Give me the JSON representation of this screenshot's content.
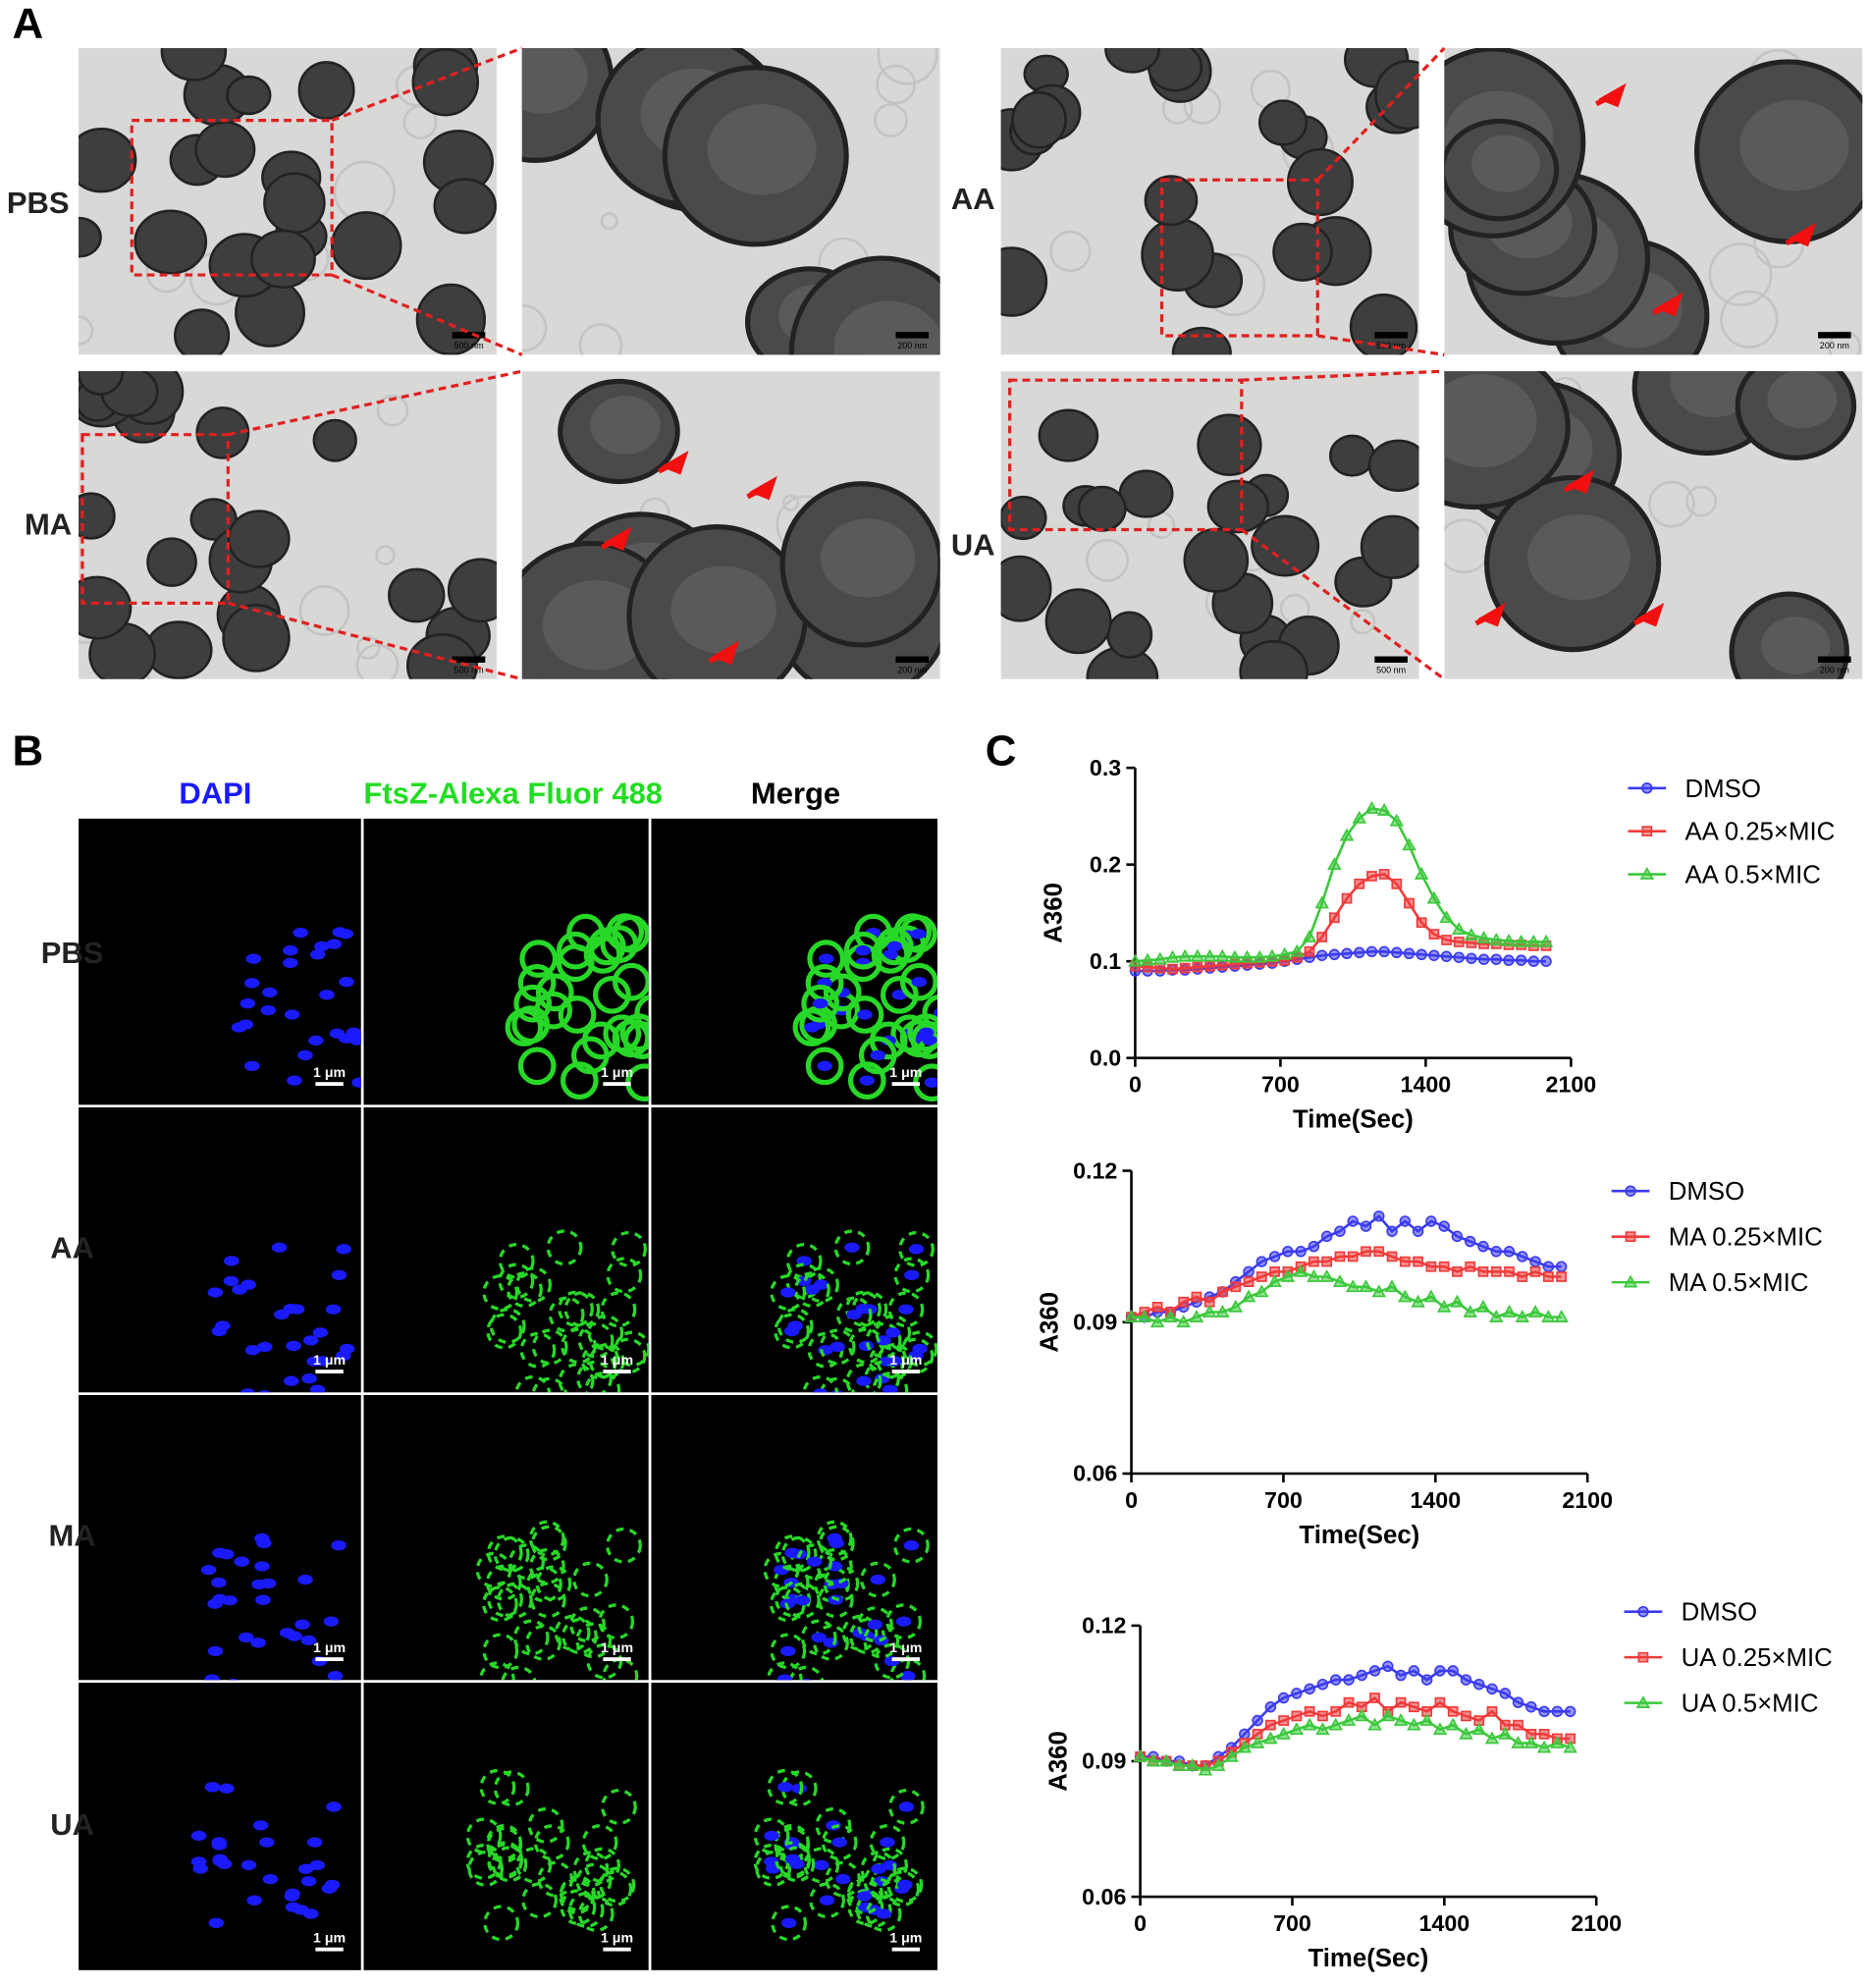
{
  "panel_labels": [
    "A",
    "B",
    "C"
  ],
  "panel_a": {
    "rows": [
      "PBS",
      "AA",
      "MA",
      "UA"
    ],
    "scale_bars": [
      "500 nm",
      "200 nm"
    ]
  },
  "panel_b": {
    "columns": [
      "DAPI",
      "FtsZ-Alexa Fluor 488",
      "Merge"
    ],
    "rows": [
      "PBS",
      "AA",
      "MA",
      "UA"
    ],
    "scale_bar": "1 μm"
  },
  "chart_data": [
    {
      "type": "line",
      "xlabel": "Time(Sec)",
      "ylabel": "A360",
      "grid": false,
      "legend": "right",
      "x": [
        0,
        60,
        120,
        180,
        240,
        300,
        360,
        420,
        480,
        540,
        600,
        660,
        720,
        780,
        840,
        900,
        960,
        1020,
        1080,
        1140,
        1200,
        1260,
        1320,
        1380,
        1440,
        1500,
        1560,
        1620,
        1680,
        1740,
        1800,
        1860,
        1920,
        1980
      ],
      "xlim": [
        0,
        2100
      ],
      "xticks": [
        0,
        700,
        1400,
        2100
      ],
      "ylim": [
        0,
        0.3
      ],
      "yticks": [
        {
          "value": 0,
          "label": "0.0"
        },
        0.1,
        0.2,
        0.3
      ],
      "series": [
        {
          "name": "DMSO",
          "color": "#3a3af0",
          "marker": "circle",
          "values": [
            0.09,
            0.09,
            0.09,
            0.091,
            0.091,
            0.092,
            0.093,
            0.094,
            0.095,
            0.096,
            0.097,
            0.098,
            0.1,
            0.102,
            0.104,
            0.106,
            0.107,
            0.108,
            0.109,
            0.11,
            0.11,
            0.109,
            0.108,
            0.107,
            0.106,
            0.105,
            0.104,
            0.103,
            0.102,
            0.102,
            0.101,
            0.101,
            0.1,
            0.1
          ]
        },
        {
          "name": "AA 0.25×MIC",
          "color": "#f03a3a",
          "marker": "square",
          "values": [
            0.095,
            0.094,
            0.093,
            0.092,
            0.093,
            0.094,
            0.095,
            0.096,
            0.097,
            0.098,
            0.099,
            0.1,
            0.101,
            0.104,
            0.11,
            0.125,
            0.145,
            0.165,
            0.18,
            0.188,
            0.19,
            0.18,
            0.16,
            0.14,
            0.128,
            0.122,
            0.12,
            0.119,
            0.118,
            0.118,
            0.117,
            0.117,
            0.116,
            0.116
          ]
        },
        {
          "name": "AA 0.5×MIC",
          "color": "#3cc83c",
          "marker": "triangle",
          "values": [
            0.1,
            0.101,
            0.102,
            0.104,
            0.105,
            0.105,
            0.105,
            0.105,
            0.104,
            0.104,
            0.104,
            0.105,
            0.107,
            0.11,
            0.125,
            0.16,
            0.2,
            0.23,
            0.248,
            0.258,
            0.256,
            0.245,
            0.22,
            0.19,
            0.165,
            0.145,
            0.133,
            0.127,
            0.124,
            0.122,
            0.121,
            0.12,
            0.12,
            0.12
          ]
        }
      ]
    },
    {
      "type": "line",
      "xlabel": "Time(Sec)",
      "ylabel": "A360",
      "grid": false,
      "legend": "right",
      "x": [
        0,
        60,
        120,
        180,
        240,
        300,
        360,
        420,
        480,
        540,
        600,
        660,
        720,
        780,
        840,
        900,
        960,
        1020,
        1080,
        1140,
        1200,
        1260,
        1320,
        1380,
        1440,
        1500,
        1560,
        1620,
        1680,
        1740,
        1800,
        1860,
        1920,
        1980
      ],
      "xlim": [
        0,
        2100
      ],
      "xticks": [
        0,
        700,
        1400,
        2100
      ],
      "ylim": [
        0.06,
        0.12
      ],
      "yticks": [
        0.06,
        0.09,
        0.12
      ],
      "series": [
        {
          "name": "DMSO",
          "color": "#3a3af0",
          "marker": "circle",
          "values": [
            0.091,
            0.091,
            0.092,
            0.092,
            0.093,
            0.094,
            0.095,
            0.096,
            0.098,
            0.1,
            0.102,
            0.103,
            0.104,
            0.104,
            0.105,
            0.107,
            0.108,
            0.11,
            0.109,
            0.111,
            0.108,
            0.11,
            0.108,
            0.11,
            0.109,
            0.107,
            0.106,
            0.105,
            0.104,
            0.104,
            0.103,
            0.102,
            0.101,
            0.101
          ]
        },
        {
          "name": "MA 0.25×MIC",
          "color": "#f03a3a",
          "marker": "square",
          "values": [
            0.091,
            0.092,
            0.093,
            0.092,
            0.094,
            0.095,
            0.094,
            0.096,
            0.097,
            0.098,
            0.099,
            0.1,
            0.1,
            0.101,
            0.102,
            0.102,
            0.103,
            0.103,
            0.104,
            0.104,
            0.103,
            0.102,
            0.102,
            0.101,
            0.101,
            0.1,
            0.101,
            0.1,
            0.1,
            0.1,
            0.099,
            0.1,
            0.099,
            0.099
          ]
        },
        {
          "name": "MA 0.5×MIC",
          "color": "#3cc83c",
          "marker": "triangle",
          "values": [
            0.091,
            0.091,
            0.09,
            0.091,
            0.09,
            0.091,
            0.092,
            0.092,
            0.093,
            0.095,
            0.096,
            0.098,
            0.099,
            0.1,
            0.099,
            0.099,
            0.098,
            0.097,
            0.097,
            0.096,
            0.097,
            0.095,
            0.094,
            0.095,
            0.093,
            0.094,
            0.092,
            0.093,
            0.091,
            0.092,
            0.091,
            0.092,
            0.091,
            0.091
          ]
        }
      ]
    },
    {
      "type": "line",
      "xlabel": "Time(Sec)",
      "ylabel": "A360",
      "grid": false,
      "legend": "right",
      "x": [
        0,
        60,
        120,
        180,
        240,
        300,
        360,
        420,
        480,
        540,
        600,
        660,
        720,
        780,
        840,
        900,
        960,
        1020,
        1080,
        1140,
        1200,
        1260,
        1320,
        1380,
        1440,
        1500,
        1560,
        1620,
        1680,
        1740,
        1800,
        1860,
        1920,
        1980
      ],
      "xlim": [
        0,
        2100
      ],
      "xticks": [
        0,
        700,
        1400,
        2100
      ],
      "ylim": [
        0.06,
        0.12
      ],
      "yticks": [
        0.06,
        0.09,
        0.12
      ],
      "series": [
        {
          "name": "DMSO",
          "color": "#3a3af0",
          "marker": "circle",
          "values": [
            0.091,
            0.091,
            0.09,
            0.09,
            0.089,
            0.089,
            0.091,
            0.093,
            0.096,
            0.099,
            0.102,
            0.104,
            0.105,
            0.106,
            0.107,
            0.108,
            0.108,
            0.109,
            0.11,
            0.111,
            0.109,
            0.11,
            0.108,
            0.11,
            0.11,
            0.108,
            0.107,
            0.106,
            0.105,
            0.103,
            0.102,
            0.101,
            0.101,
            0.101
          ]
        },
        {
          "name": "UA 0.25×MIC",
          "color": "#f03a3a",
          "marker": "square",
          "values": [
            0.091,
            0.09,
            0.09,
            0.089,
            0.089,
            0.089,
            0.09,
            0.092,
            0.094,
            0.096,
            0.098,
            0.099,
            0.1,
            0.101,
            0.1,
            0.101,
            0.103,
            0.102,
            0.104,
            0.101,
            0.103,
            0.102,
            0.101,
            0.103,
            0.101,
            0.1,
            0.099,
            0.101,
            0.098,
            0.098,
            0.096,
            0.096,
            0.095,
            0.095
          ]
        },
        {
          "name": "UA 0.5×MIC",
          "color": "#3cc83c",
          "marker": "triangle",
          "values": [
            0.091,
            0.09,
            0.09,
            0.089,
            0.089,
            0.088,
            0.089,
            0.091,
            0.093,
            0.094,
            0.095,
            0.096,
            0.097,
            0.098,
            0.097,
            0.098,
            0.099,
            0.1,
            0.098,
            0.1,
            0.099,
            0.098,
            0.099,
            0.097,
            0.098,
            0.096,
            0.097,
            0.095,
            0.096,
            0.094,
            0.094,
            0.093,
            0.094,
            0.093
          ]
        }
      ]
    }
  ]
}
